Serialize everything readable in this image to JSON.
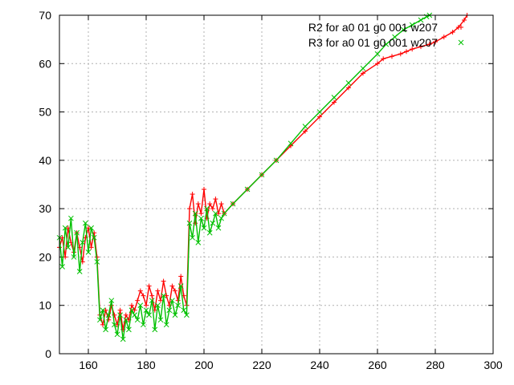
{
  "chart_data": {
    "type": "scatter",
    "title": "",
    "xlabel": "",
    "ylabel": "",
    "xlim": [
      150,
      300
    ],
    "ylim": [
      0,
      70
    ],
    "grid": true,
    "legend_position": "top-right",
    "x_ticks": [
      160,
      180,
      200,
      220,
      240,
      260,
      280,
      300
    ],
    "x_tick_labels": [
      "160",
      "180",
      "200",
      "220",
      "240",
      "260",
      "280",
      "300"
    ],
    "y_ticks": [
      0,
      10,
      20,
      30,
      40,
      50,
      60,
      70
    ],
    "y_tick_labels": [
      "0",
      "10",
      "20",
      "30",
      "40",
      "50",
      "60",
      "70"
    ],
    "series": [
      {
        "name": "R2 for a0 01 g0 001 w207",
        "marker": "plus",
        "color": "#ff0000",
        "x": [
          150,
          151,
          152,
          153,
          154,
          155,
          156,
          157,
          158,
          159,
          160,
          161,
          162,
          163,
          164,
          165,
          166,
          167,
          168,
          169,
          170,
          171,
          172,
          173,
          174,
          175,
          176,
          177,
          178,
          179,
          180,
          181,
          182,
          183,
          184,
          185,
          186,
          187,
          188,
          189,
          190,
          191,
          192,
          193,
          194,
          195,
          196,
          197,
          198,
          199,
          200,
          201,
          202,
          203,
          204,
          205,
          206,
          207,
          210,
          215,
          220,
          225,
          230,
          235,
          240,
          245,
          250,
          255,
          260,
          262,
          265,
          268,
          270,
          272,
          275,
          278,
          280,
          283,
          286,
          288,
          290,
          291
        ],
        "y": [
          22,
          24,
          20,
          26,
          23,
          21,
          25,
          22,
          19,
          24,
          26,
          22,
          25,
          20,
          8,
          6,
          9,
          7,
          10,
          8,
          6,
          9,
          5,
          8,
          7,
          10,
          9,
          11,
          13,
          12,
          10,
          14,
          12,
          9,
          13,
          11,
          15,
          12,
          10,
          14,
          13,
          11,
          16,
          12,
          10,
          30,
          33,
          27,
          31,
          29,
          34,
          28,
          31,
          30,
          32,
          29,
          31,
          29,
          31,
          34,
          37,
          40,
          43,
          46,
          49,
          52,
          55,
          58,
          60,
          61,
          61.5,
          62,
          62.5,
          63,
          63.5,
          64,
          64.5,
          65.5,
          66.5,
          67.5,
          69,
          70
        ]
      },
      {
        "name": "R3 for a0 01 g0 001 w207",
        "marker": "cross",
        "color": "#00c000",
        "x": [
          150,
          151,
          152,
          153,
          154,
          155,
          156,
          157,
          158,
          159,
          160,
          161,
          162,
          163,
          164,
          165,
          166,
          167,
          168,
          169,
          170,
          171,
          172,
          173,
          174,
          175,
          176,
          177,
          178,
          179,
          180,
          181,
          182,
          183,
          184,
          185,
          186,
          187,
          188,
          189,
          190,
          191,
          192,
          193,
          194,
          195,
          196,
          197,
          198,
          199,
          200,
          201,
          202,
          203,
          204,
          205,
          206,
          207,
          210,
          215,
          220,
          225,
          230,
          235,
          240,
          245,
          250,
          255,
          260,
          263,
          266,
          269,
          272,
          275,
          277,
          278
        ],
        "y": [
          24,
          18,
          26,
          22,
          28,
          20,
          25,
          17,
          23,
          27,
          21,
          26,
          24,
          19,
          7,
          9,
          5,
          8,
          11,
          6,
          4,
          8,
          3,
          7,
          5,
          9,
          8,
          7,
          10,
          6,
          9,
          8,
          11,
          5,
          10,
          7,
          12,
          6,
          9,
          11,
          8,
          10,
          14,
          9,
          8,
          27,
          24,
          29,
          23,
          28,
          26,
          30,
          25,
          27,
          29,
          26,
          28,
          29,
          31,
          34,
          37,
          40,
          43.5,
          47,
          50,
          53,
          56,
          59,
          62,
          64,
          65.5,
          67,
          68,
          69,
          69.7,
          70
        ]
      }
    ]
  }
}
